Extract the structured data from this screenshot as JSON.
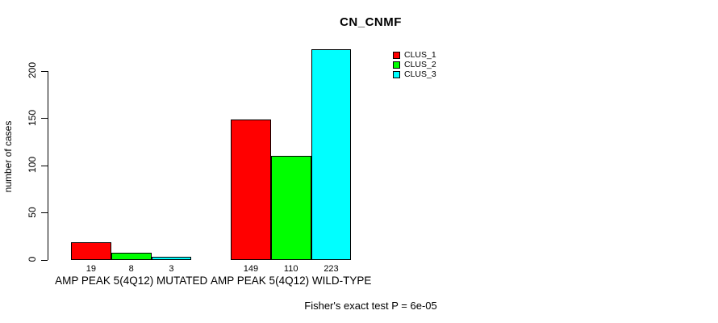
{
  "chart_data": {
    "type": "bar",
    "title": "CN_CNMF",
    "ylabel": "number of cases",
    "xlabel": "",
    "categories": [
      "AMP PEAK 5(4Q12) MUTATED",
      "AMP PEAK 5(4Q12) WILD-TYPE"
    ],
    "series": [
      {
        "name": "CLUS_1",
        "color": "#ff0000",
        "values": [
          19,
          149
        ]
      },
      {
        "name": "CLUS_2",
        "color": "#00ff00",
        "values": [
          8,
          110
        ]
      },
      {
        "name": "CLUS_3",
        "color": "#00ffff",
        "values": [
          3,
          223
        ]
      }
    ],
    "bar_value_labels": [
      [
        "19",
        "8",
        "3"
      ],
      [
        "149",
        "110",
        "223"
      ]
    ],
    "yticks": [
      "0",
      "50",
      "100",
      "150",
      "200"
    ],
    "ylim": [
      0,
      225
    ],
    "grid": false,
    "legend_position": "inside-top-right",
    "annotation": "Fisher's exact test P = 6e-05",
    "axis_color": "#000000",
    "background_color": "#ffffff"
  }
}
